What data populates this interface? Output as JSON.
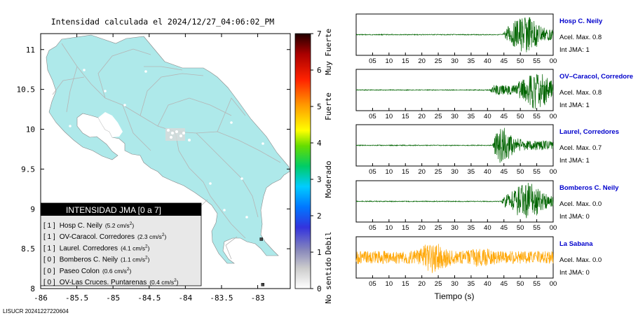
{
  "title": "Intensidad calculada el 2024/12/27_04:06:02_PM",
  "footer_id": "LISUCR 20241227220604",
  "chart_data": [
    {
      "type": "map",
      "title": "Intensidad calculada el 2024/12/27_04:06:02_PM",
      "x_ticks": [
        -86,
        -85.5,
        -85,
        -84.5,
        -84,
        -83.5,
        -83
      ],
      "y_ticks": [
        8,
        8.5,
        9,
        9.5,
        10,
        10.5,
        11
      ],
      "xlim": [
        -86,
        -82.55
      ],
      "ylim": [
        8,
        11.2
      ],
      "land_color": "#aee9ea",
      "colorbar": {
        "min": 0,
        "max": 7,
        "ticks": [
          0,
          1,
          2,
          3,
          4,
          5,
          6,
          7
        ],
        "category_labels": [
          "No sentido",
          "Debil",
          "Moderado",
          "Fuerte",
          "Muy Fuerte"
        ],
        "colors": [
          "#ffffff",
          "#9999cc",
          "#0000ff",
          "#00ccff",
          "#00ff66",
          "#ffff00",
          "#ff9900",
          "#ff0000",
          "#880000",
          "#000000"
        ]
      },
      "legend": {
        "header": "INTENSIDAD JMA [0 a 7]",
        "entries": [
          {
            "jma": "[ 1 ]",
            "station": "Hosp C. Neily",
            "accel": "(5.2 cm/s",
            "sup": "2",
            "close": ")"
          },
          {
            "jma": "[ 1 ]",
            "station": "OV-Caracol. Corredores",
            "accel": "(2.3 cm/s",
            "sup": "2",
            "close": ")"
          },
          {
            "jma": "[ 1 ]",
            "station": "Laurel. Corredores",
            "accel": "(4.1 cm/s",
            "sup": "2",
            "close": ")"
          },
          {
            "jma": "[ 0 ]",
            "station": "Bomberos C. Neily",
            "accel": "(1.1 cm/s",
            "sup": "2",
            "close": ")"
          },
          {
            "jma": "[ 0 ]",
            "station": "Paseo Colon",
            "accel": "(0.6 cm/s",
            "sup": "2",
            "close": ")"
          },
          {
            "jma": "[ 0 ]",
            "station": "OV-Las Cruces. Puntarenas",
            "accel": "(0.4 cm/s",
            "sup": "2",
            "close": ")"
          }
        ]
      },
      "station_markers": [
        {
          "lon": -82.95,
          "lat": 8.62,
          "jma": 0
        },
        {
          "lon": -82.93,
          "lat": 8.05,
          "jma": 0
        }
      ]
    },
    {
      "type": "line",
      "subtype": "seismograms",
      "xlabel": "Tiempo (s)",
      "x_ticks": [
        "05",
        "10",
        "15",
        "20",
        "25",
        "30",
        "35",
        "40",
        "45",
        "50",
        "55",
        "00"
      ],
      "traces": [
        {
          "name": "Hosp C. Neily",
          "accel_label": "Acel. Max. 0.8",
          "jma_label": "Int JMA: 1",
          "color": "#006400",
          "onset": 44.5,
          "peak_at": 51.5,
          "amplitude": 1.0
        },
        {
          "name": "OV–Caracol, Corredore",
          "accel_label": "Acel. Max. 0.8",
          "jma_label": "Int JMA: 1",
          "color": "#006400",
          "onset": 40.5,
          "peak_at": 55.0,
          "amplitude": 1.0
        },
        {
          "name": "Laurel, Corredores",
          "accel_label": "Acel. Max. 0.7",
          "jma_label": "Int JMA: 1",
          "color": "#006400",
          "onset": 41.5,
          "peak_at": 43.5,
          "amplitude": 1.0
        },
        {
          "name": "Bomberos C. Neily",
          "accel_label": "Acel. Max. 0.0",
          "jma_label": "Int JMA: 0",
          "color": "#006400",
          "onset": 44.0,
          "peak_at": 52.0,
          "amplitude": 1.0
        },
        {
          "name": "La Sabana",
          "accel_label": "Acel. Max. 0.0",
          "jma_label": "Int JMA: 0",
          "color": "#ffa500",
          "onset": 0,
          "peak_at": 23.5,
          "amplitude": 1.0
        }
      ]
    }
  ]
}
